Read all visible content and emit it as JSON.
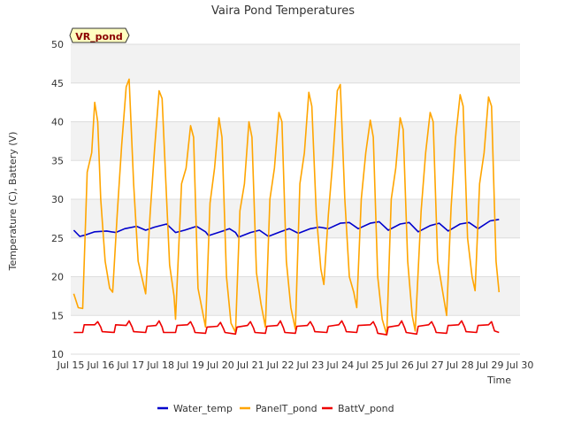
{
  "chart_data": {
    "type": "line",
    "title": "Vaira Pond Temperatures",
    "xlabel": "Time",
    "ylabel": "Temperature (C), Battery (V)",
    "badge": "VR_pond",
    "xlim": [
      15,
      30
    ],
    "ylim": [
      10,
      50
    ],
    "x_ticks": [
      "Jul 15",
      "Jul 16",
      "Jul 17",
      "Jul 18",
      "Jul 19",
      "Jul 20",
      "Jul 21",
      "Jul 22",
      "Jul 23",
      "Jul 24",
      "Jul 25",
      "Jul 26",
      "Jul 27",
      "Jul 28",
      "Jul 29",
      "Jul 30"
    ],
    "y_ticks": [
      10,
      15,
      20,
      25,
      30,
      35,
      40,
      45,
      50
    ],
    "grid": true,
    "legend_position": "bottom",
    "series": [
      {
        "name": "Water_temp",
        "color": "#0000cc",
        "points": [
          [
            15.1,
            26.0
          ],
          [
            15.3,
            25.2
          ],
          [
            15.5,
            25.4
          ],
          [
            15.8,
            25.8
          ],
          [
            16.2,
            25.9
          ],
          [
            16.5,
            25.7
          ],
          [
            16.8,
            26.2
          ],
          [
            17.2,
            26.5
          ],
          [
            17.5,
            26.0
          ],
          [
            17.8,
            26.4
          ],
          [
            18.2,
            26.8
          ],
          [
            18.5,
            25.7
          ],
          [
            18.8,
            26.0
          ],
          [
            19.2,
            26.5
          ],
          [
            19.5,
            25.8
          ],
          [
            19.6,
            25.3
          ],
          [
            20.0,
            25.8
          ],
          [
            20.3,
            26.2
          ],
          [
            20.5,
            25.7
          ],
          [
            20.6,
            25.1
          ],
          [
            21.0,
            25.7
          ],
          [
            21.3,
            26.0
          ],
          [
            21.6,
            25.2
          ],
          [
            22.0,
            25.8
          ],
          [
            22.3,
            26.2
          ],
          [
            22.6,
            25.6
          ],
          [
            23.0,
            26.2
          ],
          [
            23.3,
            26.4
          ],
          [
            23.6,
            26.2
          ],
          [
            24.0,
            26.9
          ],
          [
            24.3,
            27.0
          ],
          [
            24.6,
            26.2
          ],
          [
            25.0,
            26.9
          ],
          [
            25.3,
            27.1
          ],
          [
            25.6,
            26.0
          ],
          [
            26.0,
            26.8
          ],
          [
            26.3,
            27.0
          ],
          [
            26.6,
            25.8
          ],
          [
            27.0,
            26.6
          ],
          [
            27.3,
            26.9
          ],
          [
            27.6,
            25.9
          ],
          [
            28.0,
            26.8
          ],
          [
            28.3,
            27.0
          ],
          [
            28.6,
            26.2
          ],
          [
            29.0,
            27.2
          ],
          [
            29.3,
            27.4
          ]
        ]
      },
      {
        "name": "PanelT_pond",
        "color": "#ffa500",
        "points": [
          [
            15.1,
            17.8
          ],
          [
            15.25,
            16.0
          ],
          [
            15.4,
            15.9
          ],
          [
            15.55,
            33.5
          ],
          [
            15.7,
            36.0
          ],
          [
            15.8,
            42.5
          ],
          [
            15.9,
            40.0
          ],
          [
            16.0,
            30.0
          ],
          [
            16.15,
            22.0
          ],
          [
            16.3,
            18.5
          ],
          [
            16.4,
            18.0
          ],
          [
            16.55,
            28.0
          ],
          [
            16.7,
            37.0
          ],
          [
            16.85,
            44.5
          ],
          [
            16.95,
            45.5
          ],
          [
            17.1,
            32.0
          ],
          [
            17.25,
            22.0
          ],
          [
            17.4,
            19.5
          ],
          [
            17.5,
            17.8
          ],
          [
            17.65,
            28.0
          ],
          [
            17.8,
            36.5
          ],
          [
            17.95,
            44.0
          ],
          [
            18.05,
            43.0
          ],
          [
            18.2,
            30.0
          ],
          [
            18.3,
            21.5
          ],
          [
            18.45,
            17.5
          ],
          [
            18.5,
            14.5
          ],
          [
            18.7,
            32.0
          ],
          [
            18.85,
            34.0
          ],
          [
            19.0,
            39.5
          ],
          [
            19.1,
            38.0
          ],
          [
            19.25,
            18.5
          ],
          [
            19.35,
            16.5
          ],
          [
            19.5,
            13.5
          ],
          [
            19.65,
            29.5
          ],
          [
            19.8,
            34.0
          ],
          [
            19.95,
            40.5
          ],
          [
            20.05,
            38.0
          ],
          [
            20.2,
            20.0
          ],
          [
            20.35,
            14.0
          ],
          [
            20.5,
            12.8
          ],
          [
            20.65,
            28.5
          ],
          [
            20.8,
            32.0
          ],
          [
            20.95,
            40.0
          ],
          [
            21.05,
            38.0
          ],
          [
            21.2,
            20.5
          ],
          [
            21.35,
            16.5
          ],
          [
            21.5,
            13.5
          ],
          [
            21.65,
            30.0
          ],
          [
            21.8,
            34.0
          ],
          [
            21.95,
            41.2
          ],
          [
            22.05,
            40.0
          ],
          [
            22.2,
            22.0
          ],
          [
            22.35,
            16.0
          ],
          [
            22.5,
            13.2
          ],
          [
            22.65,
            32.0
          ],
          [
            22.8,
            36.0
          ],
          [
            22.95,
            43.8
          ],
          [
            23.05,
            42.0
          ],
          [
            23.2,
            28.0
          ],
          [
            23.35,
            21.0
          ],
          [
            23.45,
            19.0
          ],
          [
            23.6,
            28.0
          ],
          [
            23.75,
            35.0
          ],
          [
            23.9,
            44.0
          ],
          [
            24.0,
            44.8
          ],
          [
            24.15,
            30.0
          ],
          [
            24.3,
            20.0
          ],
          [
            24.45,
            18.0
          ],
          [
            24.55,
            16.0
          ],
          [
            24.7,
            30.0
          ],
          [
            24.85,
            36.0
          ],
          [
            25.0,
            40.2
          ],
          [
            25.1,
            38.0
          ],
          [
            25.25,
            20.0
          ],
          [
            25.4,
            14.5
          ],
          [
            25.55,
            12.5
          ],
          [
            25.7,
            30.0
          ],
          [
            25.85,
            34.0
          ],
          [
            26.0,
            40.5
          ],
          [
            26.1,
            39.0
          ],
          [
            26.25,
            22.0
          ],
          [
            26.4,
            15.0
          ],
          [
            26.5,
            13.0
          ],
          [
            26.7,
            28.5
          ],
          [
            26.85,
            36.0
          ],
          [
            27.0,
            41.2
          ],
          [
            27.1,
            40.0
          ],
          [
            27.25,
            22.0
          ],
          [
            27.4,
            18.5
          ],
          [
            27.55,
            15.0
          ],
          [
            27.7,
            29.0
          ],
          [
            27.85,
            38.0
          ],
          [
            28.0,
            43.5
          ],
          [
            28.1,
            42.0
          ],
          [
            28.25,
            25.0
          ],
          [
            28.4,
            20.0
          ],
          [
            28.5,
            18.2
          ],
          [
            28.65,
            32.0
          ],
          [
            28.8,
            36.0
          ],
          [
            28.95,
            43.2
          ],
          [
            29.05,
            42.0
          ],
          [
            29.2,
            22.0
          ],
          [
            29.3,
            18.0
          ]
        ]
      },
      {
        "name": "BattV_pond",
        "color": "#ee0000",
        "points": [
          [
            15.1,
            12.8
          ],
          [
            15.4,
            12.8
          ],
          [
            15.45,
            13.8
          ],
          [
            15.8,
            13.8
          ],
          [
            15.9,
            14.2
          ],
          [
            16.0,
            13.5
          ],
          [
            16.05,
            12.9
          ],
          [
            16.45,
            12.8
          ],
          [
            16.5,
            13.8
          ],
          [
            16.85,
            13.7
          ],
          [
            16.95,
            14.3
          ],
          [
            17.05,
            13.5
          ],
          [
            17.1,
            12.9
          ],
          [
            17.5,
            12.8
          ],
          [
            17.55,
            13.6
          ],
          [
            17.85,
            13.7
          ],
          [
            17.95,
            14.3
          ],
          [
            18.05,
            13.5
          ],
          [
            18.1,
            12.8
          ],
          [
            18.5,
            12.8
          ],
          [
            18.55,
            13.7
          ],
          [
            18.9,
            13.8
          ],
          [
            19.0,
            14.2
          ],
          [
            19.1,
            13.4
          ],
          [
            19.15,
            12.8
          ],
          [
            19.5,
            12.7
          ],
          [
            19.55,
            13.5
          ],
          [
            19.9,
            13.6
          ],
          [
            20.0,
            14.1
          ],
          [
            20.1,
            13.3
          ],
          [
            20.15,
            12.8
          ],
          [
            20.5,
            12.6
          ],
          [
            20.55,
            13.5
          ],
          [
            20.9,
            13.7
          ],
          [
            21.0,
            14.2
          ],
          [
            21.1,
            13.4
          ],
          [
            21.15,
            12.8
          ],
          [
            21.5,
            12.7
          ],
          [
            21.55,
            13.6
          ],
          [
            21.9,
            13.7
          ],
          [
            22.0,
            14.3
          ],
          [
            22.1,
            13.4
          ],
          [
            22.15,
            12.8
          ],
          [
            22.5,
            12.7
          ],
          [
            22.55,
            13.6
          ],
          [
            22.9,
            13.7
          ],
          [
            23.0,
            14.2
          ],
          [
            23.1,
            13.5
          ],
          [
            23.15,
            12.9
          ],
          [
            23.55,
            12.8
          ],
          [
            23.6,
            13.6
          ],
          [
            23.95,
            13.8
          ],
          [
            24.05,
            14.3
          ],
          [
            24.15,
            13.5
          ],
          [
            24.2,
            12.9
          ],
          [
            24.55,
            12.8
          ],
          [
            24.6,
            13.7
          ],
          [
            25.0,
            13.8
          ],
          [
            25.1,
            14.2
          ],
          [
            25.2,
            13.4
          ],
          [
            25.25,
            12.7
          ],
          [
            25.55,
            12.5
          ],
          [
            25.6,
            13.5
          ],
          [
            25.95,
            13.7
          ],
          [
            26.05,
            14.3
          ],
          [
            26.15,
            13.4
          ],
          [
            26.2,
            12.8
          ],
          [
            26.55,
            12.6
          ],
          [
            26.6,
            13.6
          ],
          [
            26.95,
            13.8
          ],
          [
            27.05,
            14.2
          ],
          [
            27.15,
            13.4
          ],
          [
            27.2,
            12.8
          ],
          [
            27.55,
            12.7
          ],
          [
            27.6,
            13.7
          ],
          [
            27.95,
            13.8
          ],
          [
            28.05,
            14.3
          ],
          [
            28.15,
            13.5
          ],
          [
            28.2,
            12.9
          ],
          [
            28.55,
            12.8
          ],
          [
            28.6,
            13.7
          ],
          [
            28.95,
            13.8
          ],
          [
            29.05,
            14.2
          ],
          [
            29.15,
            13.0
          ],
          [
            29.3,
            12.8
          ]
        ]
      }
    ]
  }
}
